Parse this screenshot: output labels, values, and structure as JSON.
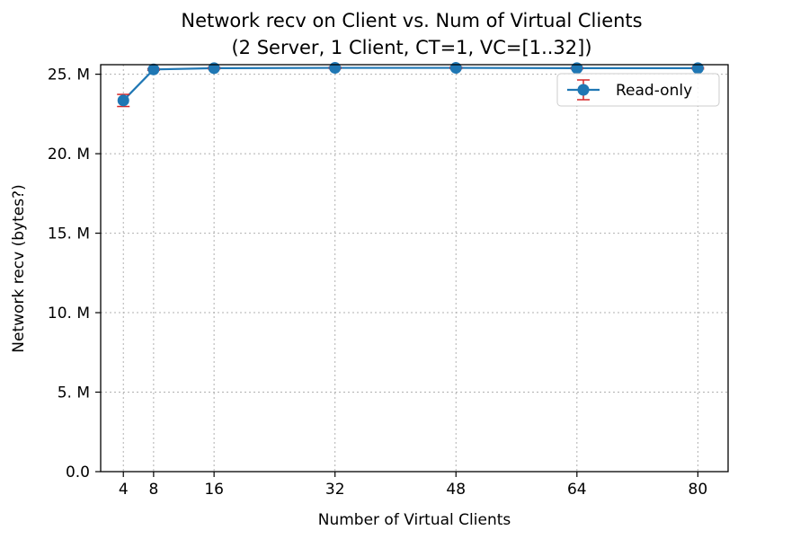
{
  "chart_data": {
    "type": "line",
    "title_line1": "Network recv on Client vs. Num of Virtual Clients",
    "title_line2": "(2 Server, 1 Client, CT=1, VC=[1..32])",
    "xlabel": "Number of Virtual Clients",
    "ylabel": "Network recv (bytes?)",
    "xlim": [
      1,
      84
    ],
    "ylim": [
      0,
      25.6
    ],
    "grid": true,
    "legend_position": "top-right",
    "xticks": [
      4,
      8,
      16,
      32,
      48,
      64,
      80
    ],
    "yticks": [
      {
        "value": 0,
        "label": "0.0"
      },
      {
        "value": 5,
        "label": "5. M"
      },
      {
        "value": 10,
        "label": "10. M"
      },
      {
        "value": 15,
        "label": "15. M"
      },
      {
        "value": 20,
        "label": "20. M"
      },
      {
        "value": 25,
        "label": "25. M"
      }
    ],
    "series": [
      {
        "name": "Read-only",
        "color": "#1f77b4",
        "errorbar_color": "#d62728",
        "x": [
          4,
          8,
          16,
          32,
          48,
          64,
          80
        ],
        "y": [
          23.35,
          25.3,
          25.38,
          25.4,
          25.4,
          25.38,
          25.38
        ],
        "yerr": [
          0.38,
          0.05,
          0.05,
          0.05,
          0.05,
          0.05,
          0.05
        ]
      }
    ]
  }
}
